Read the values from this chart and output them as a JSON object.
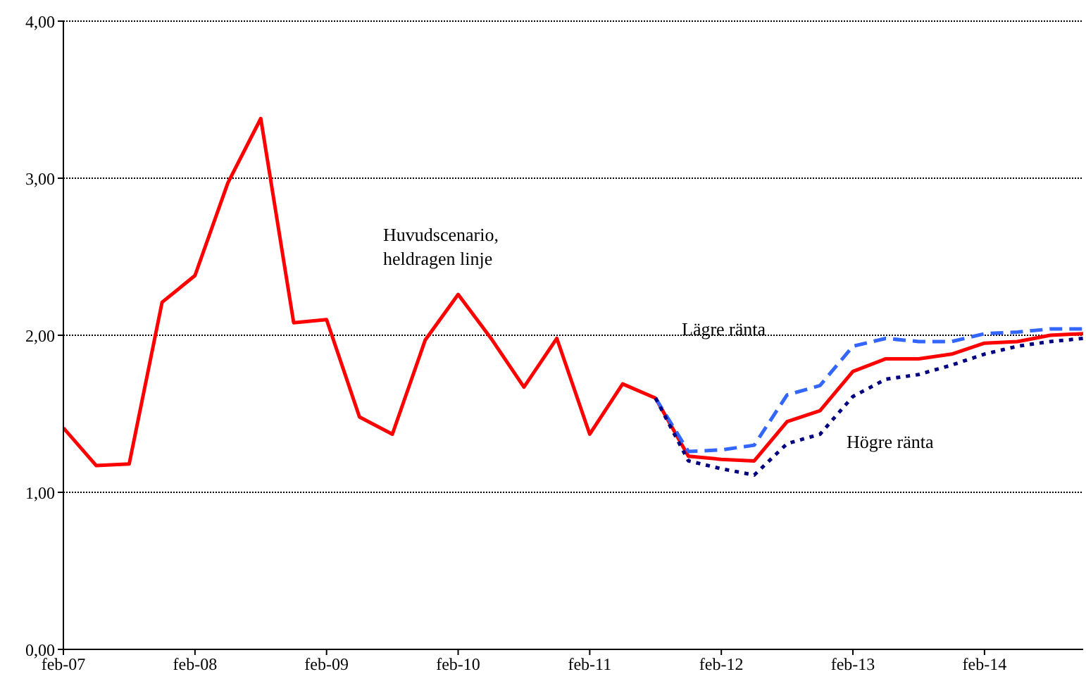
{
  "chart_data": {
    "type": "line",
    "x": [
      "2007-02",
      "2007-05",
      "2007-08",
      "2007-11",
      "2008-02",
      "2008-05",
      "2008-08",
      "2008-11",
      "2009-02",
      "2009-05",
      "2009-08",
      "2009-11",
      "2010-02",
      "2010-05",
      "2010-08",
      "2010-11",
      "2011-02",
      "2011-05",
      "2011-08",
      "2011-11",
      "2012-02",
      "2012-05",
      "2012-08",
      "2012-11",
      "2013-02",
      "2013-05",
      "2013-08",
      "2013-11",
      "2014-02",
      "2014-05",
      "2014-08",
      "2014-11"
    ],
    "series": [
      {
        "color": "#ff0000",
        "line_style": "solid",
        "values": [
          1.41,
          1.17,
          1.18,
          2.21,
          2.38,
          2.97,
          3.38,
          2.08,
          2.1,
          1.48,
          1.37,
          1.97,
          2.26,
          1.98,
          1.67,
          1.98,
          1.37,
          1.69,
          1.6,
          1.23,
          1.21,
          1.2,
          1.45,
          1.52,
          1.77,
          1.85,
          1.85,
          1.88,
          1.95,
          1.96,
          2.0,
          2.01
        ]
      },
      {
        "color": "#3366ff",
        "line_style": "dashed",
        "values": [
          null,
          null,
          null,
          null,
          null,
          null,
          null,
          null,
          null,
          null,
          null,
          null,
          null,
          null,
          null,
          null,
          null,
          null,
          1.6,
          1.26,
          1.27,
          1.3,
          1.62,
          1.68,
          1.93,
          1.98,
          1.96,
          1.96,
          2.01,
          2.02,
          2.04,
          2.04
        ]
      },
      {
        "color": "#000080",
        "line_style": "dotted",
        "values": [
          null,
          null,
          null,
          null,
          null,
          null,
          null,
          null,
          null,
          null,
          null,
          null,
          null,
          null,
          null,
          null,
          null,
          null,
          1.6,
          1.2,
          1.15,
          1.11,
          1.31,
          1.37,
          1.61,
          1.72,
          1.75,
          1.81,
          1.88,
          1.93,
          1.96,
          1.98
        ]
      }
    ],
    "xlim": [
      "2007-02",
      "2014-11"
    ],
    "xticks": [
      {
        "value": "2007-02",
        "label": "feb-07"
      },
      {
        "value": "2008-02",
        "label": "feb-08"
      },
      {
        "value": "2009-02",
        "label": "feb-09"
      },
      {
        "value": "2010-02",
        "label": "feb-10"
      },
      {
        "value": "2011-02",
        "label": "feb-11"
      },
      {
        "value": "2012-02",
        "label": "feb-12"
      },
      {
        "value": "2013-02",
        "label": "feb-13"
      },
      {
        "value": "2014-02",
        "label": "feb-14"
      }
    ],
    "ylim": [
      0,
      4
    ],
    "yticks": [
      {
        "value": 0,
        "label": "0,00"
      },
      {
        "value": 1,
        "label": "1,00"
      },
      {
        "value": 2,
        "label": "2,00"
      },
      {
        "value": 3,
        "label": "3,00"
      },
      {
        "value": 4,
        "label": "4,00"
      }
    ],
    "grid": "y",
    "legend": false,
    "marker": "none",
    "annotations": [
      "Huvudscenario,\nheldragen linje",
      "Lägre ränta",
      "Högre ränta"
    ]
  }
}
